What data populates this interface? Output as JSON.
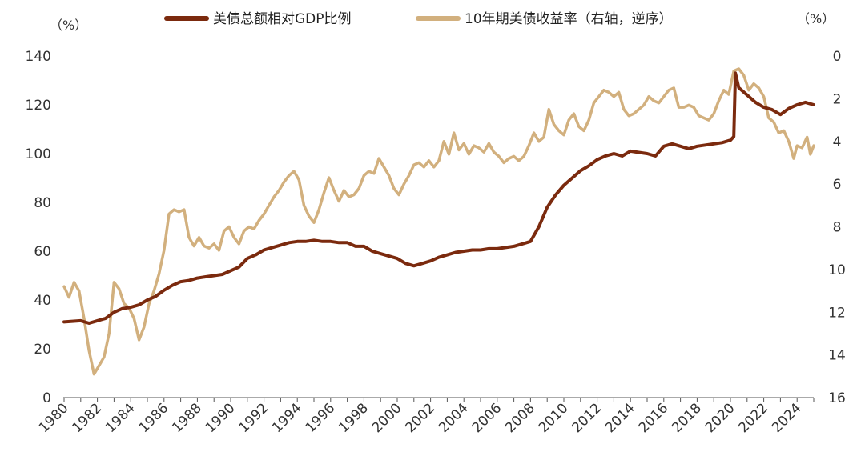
{
  "chart_data": {
    "type": "line",
    "title": "",
    "left_axis": {
      "unit_label": "（%）",
      "range": [
        0,
        140
      ],
      "ticks": [
        "0",
        "20",
        "40",
        "60",
        "80",
        "100",
        "120",
        "140"
      ]
    },
    "right_axis": {
      "unit_label": "（%）",
      "range": [
        0,
        16
      ],
      "inverted": true,
      "ticks": [
        "0",
        "2",
        "4",
        "6",
        "8",
        "10",
        "12",
        "14",
        "16"
      ]
    },
    "x_axis": {
      "range": [
        1980,
        2025
      ],
      "ticks": [
        "1980",
        "1982",
        "1984",
        "1986",
        "1988",
        "1990",
        "1992",
        "1994",
        "1996",
        "1998",
        "2000",
        "2002",
        "2004",
        "2006",
        "2008",
        "2010",
        "2012",
        "2014",
        "2016",
        "2018",
        "2020",
        "2022",
        "2024"
      ]
    },
    "legend_position": "top",
    "grid": false,
    "series": [
      {
        "name": "美债总额相对GDP比例",
        "axis": "left",
        "color": "#7B2A0E",
        "points": [
          [
            1980,
            31
          ],
          [
            1981,
            31.5
          ],
          [
            1981.5,
            30.5
          ],
          [
            1982,
            31.5
          ],
          [
            1982.5,
            32.5
          ],
          [
            1983,
            35
          ],
          [
            1983.5,
            36.5
          ],
          [
            1984,
            37
          ],
          [
            1984.5,
            38
          ],
          [
            1985,
            40
          ],
          [
            1985.5,
            41.5
          ],
          [
            1986,
            44
          ],
          [
            1986.5,
            46
          ],
          [
            1987,
            47.5
          ],
          [
            1987.5,
            48
          ],
          [
            1988,
            49
          ],
          [
            1988.5,
            49.5
          ],
          [
            1989,
            50
          ],
          [
            1989.5,
            50.5
          ],
          [
            1990,
            52
          ],
          [
            1990.5,
            53.5
          ],
          [
            1991,
            57
          ],
          [
            1991.5,
            58.5
          ],
          [
            1992,
            60.5
          ],
          [
            1992.5,
            61.5
          ],
          [
            1993,
            62.5
          ],
          [
            1993.5,
            63.5
          ],
          [
            1994,
            64
          ],
          [
            1994.5,
            64
          ],
          [
            1995,
            64.5
          ],
          [
            1995.5,
            64
          ],
          [
            1996,
            64
          ],
          [
            1996.5,
            63.5
          ],
          [
            1997,
            63.5
          ],
          [
            1997.5,
            62
          ],
          [
            1998,
            62
          ],
          [
            1998.5,
            60
          ],
          [
            1999,
            59
          ],
          [
            1999.5,
            58
          ],
          [
            2000,
            57
          ],
          [
            2000.5,
            55
          ],
          [
            2001,
            54
          ],
          [
            2001.5,
            55
          ],
          [
            2002,
            56
          ],
          [
            2002.5,
            57.5
          ],
          [
            2003,
            58.5
          ],
          [
            2003.5,
            59.5
          ],
          [
            2004,
            60
          ],
          [
            2004.5,
            60.5
          ],
          [
            2005,
            60.5
          ],
          [
            2005.5,
            61
          ],
          [
            2006,
            61
          ],
          [
            2006.5,
            61.5
          ],
          [
            2007,
            62
          ],
          [
            2007.5,
            63
          ],
          [
            2008,
            64
          ],
          [
            2008.5,
            70
          ],
          [
            2009,
            78
          ],
          [
            2009.5,
            83
          ],
          [
            2010,
            87
          ],
          [
            2010.5,
            90
          ],
          [
            2011,
            93
          ],
          [
            2011.5,
            95
          ],
          [
            2012,
            97.5
          ],
          [
            2012.5,
            99
          ],
          [
            2013,
            100
          ],
          [
            2013.5,
            99
          ],
          [
            2014,
            101
          ],
          [
            2014.5,
            100.5
          ],
          [
            2015,
            100
          ],
          [
            2015.5,
            99
          ],
          [
            2016,
            103
          ],
          [
            2016.5,
            104
          ],
          [
            2017,
            103
          ],
          [
            2017.5,
            102
          ],
          [
            2018,
            103
          ],
          [
            2018.5,
            103.5
          ],
          [
            2019,
            104
          ],
          [
            2019.5,
            104.5
          ],
          [
            2020,
            105.5
          ],
          [
            2020.2,
            107
          ],
          [
            2020.3,
            133
          ],
          [
            2020.5,
            127
          ],
          [
            2021,
            124
          ],
          [
            2021.5,
            121
          ],
          [
            2022,
            119
          ],
          [
            2022.5,
            118
          ],
          [
            2023,
            116
          ],
          [
            2023.5,
            118.5
          ],
          [
            2024,
            120
          ],
          [
            2024.5,
            121
          ],
          [
            2025,
            120
          ]
        ]
      },
      {
        "name": "10年期美债收益率（右轴，逆序）",
        "axis": "right",
        "color": "#D2B07E",
        "points": [
          [
            1980,
            10.8
          ],
          [
            1980.3,
            11.3
          ],
          [
            1980.6,
            10.6
          ],
          [
            1980.9,
            11.0
          ],
          [
            1981.2,
            12.3
          ],
          [
            1981.5,
            13.8
          ],
          [
            1981.8,
            14.9
          ],
          [
            1982.1,
            14.5
          ],
          [
            1982.4,
            14.1
          ],
          [
            1982.7,
            13.0
          ],
          [
            1983,
            10.6
          ],
          [
            1983.3,
            10.9
          ],
          [
            1983.6,
            11.6
          ],
          [
            1983.9,
            11.8
          ],
          [
            1984.2,
            12.3
          ],
          [
            1984.5,
            13.3
          ],
          [
            1984.8,
            12.7
          ],
          [
            1985.1,
            11.6
          ],
          [
            1985.4,
            11.0
          ],
          [
            1985.7,
            10.2
          ],
          [
            1986,
            9.1
          ],
          [
            1986.3,
            7.4
          ],
          [
            1986.6,
            7.2
          ],
          [
            1986.9,
            7.3
          ],
          [
            1987.2,
            7.2
          ],
          [
            1987.5,
            8.5
          ],
          [
            1987.8,
            8.9
          ],
          [
            1988.1,
            8.5
          ],
          [
            1988.4,
            8.9
          ],
          [
            1988.7,
            9.0
          ],
          [
            1989,
            8.8
          ],
          [
            1989.3,
            9.1
          ],
          [
            1989.6,
            8.2
          ],
          [
            1989.9,
            8.0
          ],
          [
            1990.2,
            8.5
          ],
          [
            1990.5,
            8.8
          ],
          [
            1990.8,
            8.2
          ],
          [
            1991.1,
            8.0
          ],
          [
            1991.4,
            8.1
          ],
          [
            1991.7,
            7.7
          ],
          [
            1992,
            7.4
          ],
          [
            1992.3,
            7.0
          ],
          [
            1992.6,
            6.6
          ],
          [
            1992.9,
            6.3
          ],
          [
            1993.2,
            5.9
          ],
          [
            1993.5,
            5.6
          ],
          [
            1993.8,
            5.4
          ],
          [
            1994.1,
            5.8
          ],
          [
            1994.4,
            7.0
          ],
          [
            1994.7,
            7.5
          ],
          [
            1995,
            7.8
          ],
          [
            1995.3,
            7.2
          ],
          [
            1995.6,
            6.4
          ],
          [
            1995.9,
            5.7
          ],
          [
            1996.2,
            6.3
          ],
          [
            1996.5,
            6.8
          ],
          [
            1996.8,
            6.3
          ],
          [
            1997.1,
            6.6
          ],
          [
            1997.4,
            6.5
          ],
          [
            1997.7,
            6.2
          ],
          [
            1998,
            5.6
          ],
          [
            1998.3,
            5.4
          ],
          [
            1998.6,
            5.5
          ],
          [
            1998.9,
            4.8
          ],
          [
            1999.2,
            5.2
          ],
          [
            1999.5,
            5.6
          ],
          [
            1999.8,
            6.2
          ],
          [
            2000.1,
            6.5
          ],
          [
            2000.4,
            6.0
          ],
          [
            2000.7,
            5.6
          ],
          [
            2001,
            5.1
          ],
          [
            2001.3,
            5.0
          ],
          [
            2001.6,
            5.2
          ],
          [
            2001.9,
            4.9
          ],
          [
            2002.2,
            5.2
          ],
          [
            2002.5,
            4.9
          ],
          [
            2002.8,
            4.0
          ],
          [
            2003.1,
            4.6
          ],
          [
            2003.4,
            3.6
          ],
          [
            2003.7,
            4.4
          ],
          [
            2004,
            4.1
          ],
          [
            2004.3,
            4.6
          ],
          [
            2004.6,
            4.2
          ],
          [
            2004.9,
            4.3
          ],
          [
            2005.2,
            4.5
          ],
          [
            2005.5,
            4.1
          ],
          [
            2005.8,
            4.5
          ],
          [
            2006.1,
            4.7
          ],
          [
            2006.4,
            5.0
          ],
          [
            2006.7,
            4.8
          ],
          [
            2007,
            4.7
          ],
          [
            2007.3,
            4.9
          ],
          [
            2007.6,
            4.7
          ],
          [
            2007.9,
            4.2
          ],
          [
            2008.2,
            3.6
          ],
          [
            2008.5,
            4.0
          ],
          [
            2008.8,
            3.8
          ],
          [
            2009.1,
            2.5
          ],
          [
            2009.4,
            3.2
          ],
          [
            2009.7,
            3.5
          ],
          [
            2010,
            3.7
          ],
          [
            2010.3,
            3.0
          ],
          [
            2010.6,
            2.7
          ],
          [
            2010.9,
            3.3
          ],
          [
            2011.2,
            3.5
          ],
          [
            2011.5,
            3.0
          ],
          [
            2011.8,
            2.2
          ],
          [
            2012.1,
            1.9
          ],
          [
            2012.4,
            1.6
          ],
          [
            2012.7,
            1.7
          ],
          [
            2013,
            1.9
          ],
          [
            2013.3,
            1.7
          ],
          [
            2013.6,
            2.5
          ],
          [
            2013.9,
            2.8
          ],
          [
            2014.2,
            2.7
          ],
          [
            2014.5,
            2.5
          ],
          [
            2014.8,
            2.3
          ],
          [
            2015.1,
            1.9
          ],
          [
            2015.4,
            2.1
          ],
          [
            2015.7,
            2.2
          ],
          [
            2016,
            1.9
          ],
          [
            2016.3,
            1.6
          ],
          [
            2016.6,
            1.5
          ],
          [
            2016.9,
            2.4
          ],
          [
            2017.2,
            2.4
          ],
          [
            2017.5,
            2.3
          ],
          [
            2017.8,
            2.4
          ],
          [
            2018.1,
            2.8
          ],
          [
            2018.4,
            2.9
          ],
          [
            2018.7,
            3.0
          ],
          [
            2019,
            2.7
          ],
          [
            2019.3,
            2.1
          ],
          [
            2019.6,
            1.6
          ],
          [
            2019.9,
            1.8
          ],
          [
            2020.2,
            0.7
          ],
          [
            2020.5,
            0.6
          ],
          [
            2020.8,
            0.9
          ],
          [
            2021.1,
            1.6
          ],
          [
            2021.4,
            1.3
          ],
          [
            2021.7,
            1.5
          ],
          [
            2022,
            1.9
          ],
          [
            2022.3,
            2.9
          ],
          [
            2022.6,
            3.1
          ],
          [
            2022.9,
            3.6
          ],
          [
            2023.2,
            3.5
          ],
          [
            2023.5,
            4.0
          ],
          [
            2023.8,
            4.8
          ],
          [
            2024,
            4.2
          ],
          [
            2024.3,
            4.3
          ],
          [
            2024.6,
            3.8
          ],
          [
            2024.8,
            4.6
          ],
          [
            2025,
            4.2
          ]
        ]
      }
    ]
  }
}
